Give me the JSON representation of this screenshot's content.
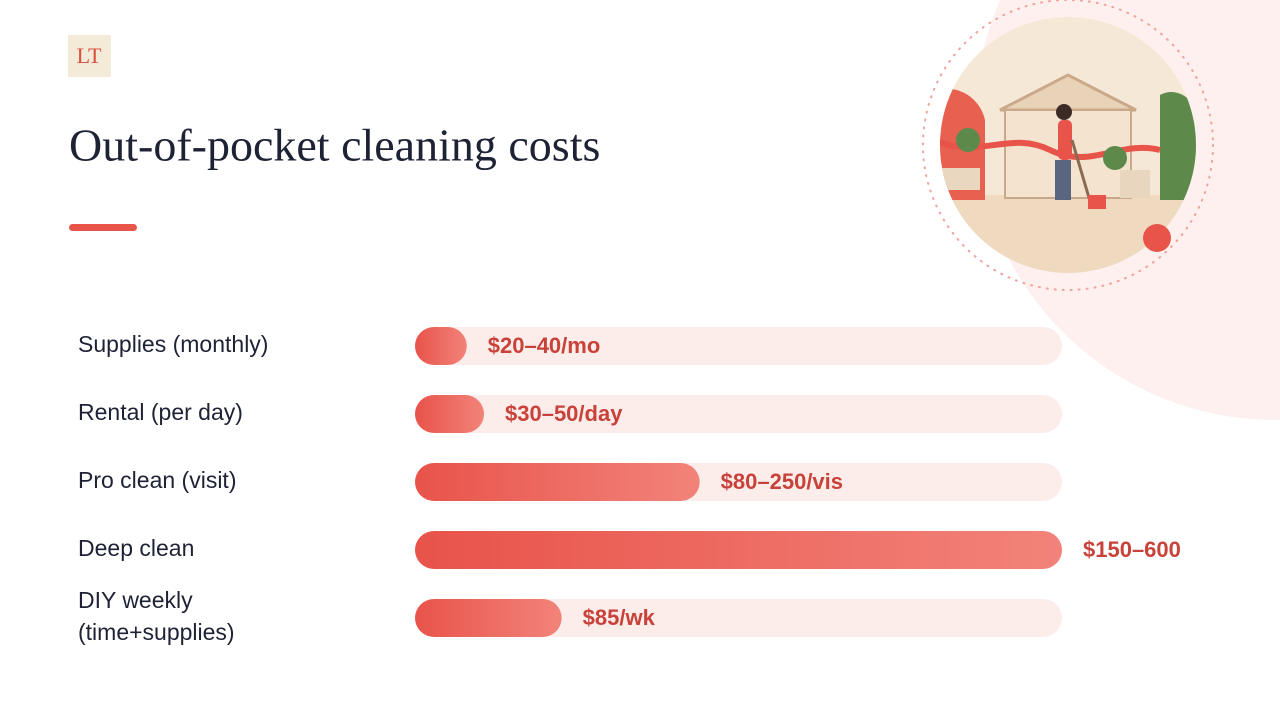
{
  "logo": "LT",
  "chart_data": {
    "type": "bar",
    "orientation": "horizontal",
    "title": "Out-of-pocket cleaning costs",
    "categories": [
      "Supplies (monthly)",
      "Rental (per day)",
      "Pro clean (visit)",
      "Deep clean",
      "DIY weekly\n(time+supplies)"
    ],
    "values": [
      30,
      40,
      165,
      375,
      85
    ],
    "value_labels": [
      "$20–40/mo",
      "$30–50/day",
      "$80–250/vis",
      "$150–600",
      "$85/wk"
    ],
    "xlim": [
      0,
      375
    ],
    "color": "#e8534a",
    "color_end": "#f2837a",
    "track_color": "#fcecea",
    "label_color": "#c8423a"
  }
}
